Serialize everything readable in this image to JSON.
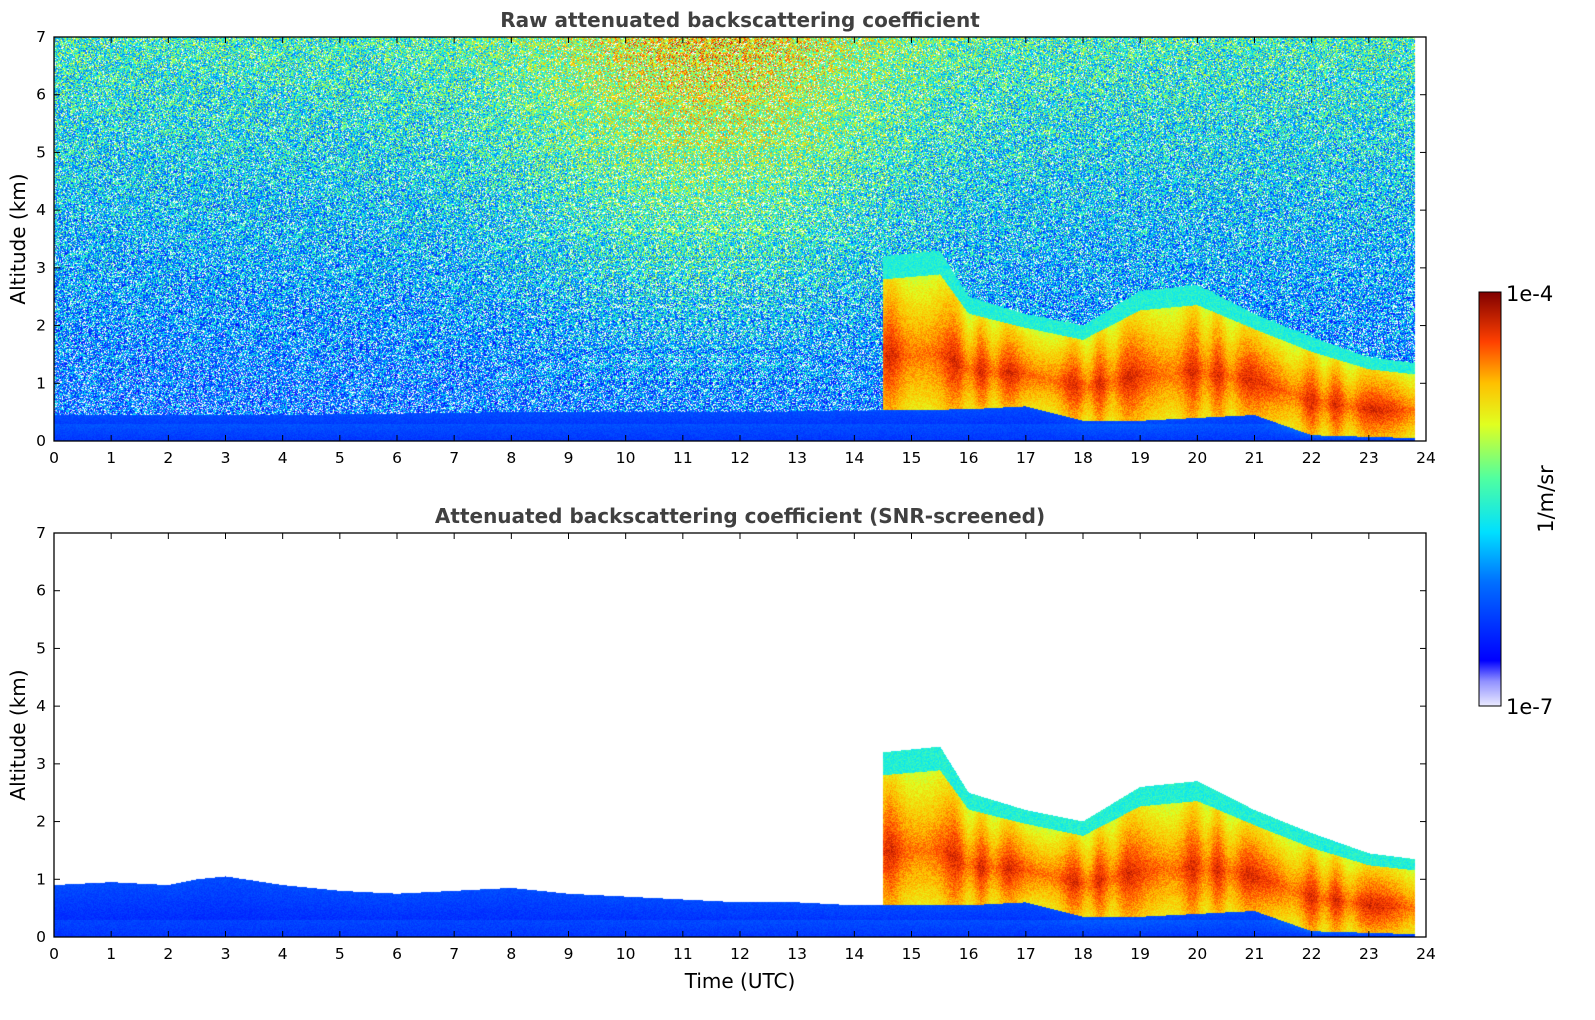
{
  "chart_data": [
    {
      "type": "heatmap",
      "title": "Raw attenuated backscattering coefficient",
      "xlabel": "",
      "ylabel": "Altitude (km)",
      "xlim": [
        0,
        24
      ],
      "ylim": [
        0,
        7
      ],
      "x_ticks": [
        "0",
        "1",
        "2",
        "3",
        "4",
        "5",
        "6",
        "7",
        "8",
        "9",
        "10",
        "11",
        "12",
        "13",
        "14",
        "15",
        "16",
        "17",
        "18",
        "19",
        "20",
        "21",
        "22",
        "23",
        "24"
      ],
      "y_ticks": [
        "0",
        "1",
        "2",
        "3",
        "4",
        "5",
        "6",
        "7"
      ],
      "data_end_time": 23.8,
      "features": {
        "boundary_layer_top_km": [
          [
            0,
            0.45
          ],
          [
            4,
            0.45
          ],
          [
            8,
            0.5
          ],
          [
            12,
            0.5
          ],
          [
            16,
            0.55
          ],
          [
            17,
            0.6
          ],
          [
            18,
            0.35
          ],
          [
            19,
            0.35
          ],
          [
            20,
            0.4
          ],
          [
            21,
            0.45
          ],
          [
            22,
            0.1
          ],
          [
            23.8,
            0.05
          ]
        ],
        "aerosol_layer_top_km": [
          [
            14.5,
            3.2
          ],
          [
            15.5,
            3.3
          ],
          [
            16,
            2.5
          ],
          [
            17,
            2.2
          ],
          [
            18,
            2.0
          ],
          [
            19,
            2.6
          ],
          [
            20,
            2.7
          ],
          [
            21,
            2.2
          ],
          [
            22,
            1.8
          ],
          [
            23,
            1.45
          ],
          [
            23.8,
            1.35
          ]
        ],
        "noise_background": "high"
      }
    },
    {
      "type": "heatmap",
      "title": "Attenuated backscattering coefficient (SNR-screened)",
      "xlabel": "Time (UTC)",
      "ylabel": "Altitude (km)",
      "xlim": [
        0,
        24
      ],
      "ylim": [
        0,
        7
      ],
      "x_ticks": [
        "0",
        "1",
        "2",
        "3",
        "4",
        "5",
        "6",
        "7",
        "8",
        "9",
        "10",
        "11",
        "12",
        "13",
        "14",
        "15",
        "16",
        "17",
        "18",
        "19",
        "20",
        "21",
        "22",
        "23",
        "24"
      ],
      "y_ticks": [
        "0",
        "1",
        "2",
        "3",
        "4",
        "5",
        "6",
        "7"
      ],
      "data_end_time": 23.8,
      "features": {
        "boundary_layer_top_km": [
          [
            0,
            0.9
          ],
          [
            1,
            0.95
          ],
          [
            2,
            0.9
          ],
          [
            2.5,
            1.0
          ],
          [
            3,
            1.05
          ],
          [
            4,
            0.9
          ],
          [
            5,
            0.8
          ],
          [
            6,
            0.75
          ],
          [
            7,
            0.8
          ],
          [
            8,
            0.85
          ],
          [
            9,
            0.75
          ],
          [
            10,
            0.7
          ],
          [
            11,
            0.65
          ],
          [
            12,
            0.6
          ],
          [
            13,
            0.6
          ],
          [
            14,
            0.55
          ],
          [
            16,
            0.55
          ],
          [
            17,
            0.6
          ],
          [
            18,
            0.35
          ],
          [
            19,
            0.35
          ],
          [
            20,
            0.4
          ],
          [
            21,
            0.45
          ],
          [
            22,
            0.1
          ],
          [
            23.8,
            0.05
          ]
        ],
        "aerosol_layer_top_km": [
          [
            14.5,
            3.2
          ],
          [
            15.5,
            3.3
          ],
          [
            16,
            2.5
          ],
          [
            17,
            2.2
          ],
          [
            18,
            2.0
          ],
          [
            19,
            2.6
          ],
          [
            20,
            2.7
          ],
          [
            21,
            2.2
          ],
          [
            22,
            1.8
          ],
          [
            23,
            1.45
          ],
          [
            23.8,
            1.35
          ]
        ],
        "noise_background": "screened"
      }
    }
  ],
  "colorbar": {
    "label": "1/m/sr",
    "max_label": "1e-4",
    "min_label": "1e-7",
    "colormap": "jet",
    "scale": "log",
    "range": [
      1e-07,
      0.0001
    ]
  }
}
